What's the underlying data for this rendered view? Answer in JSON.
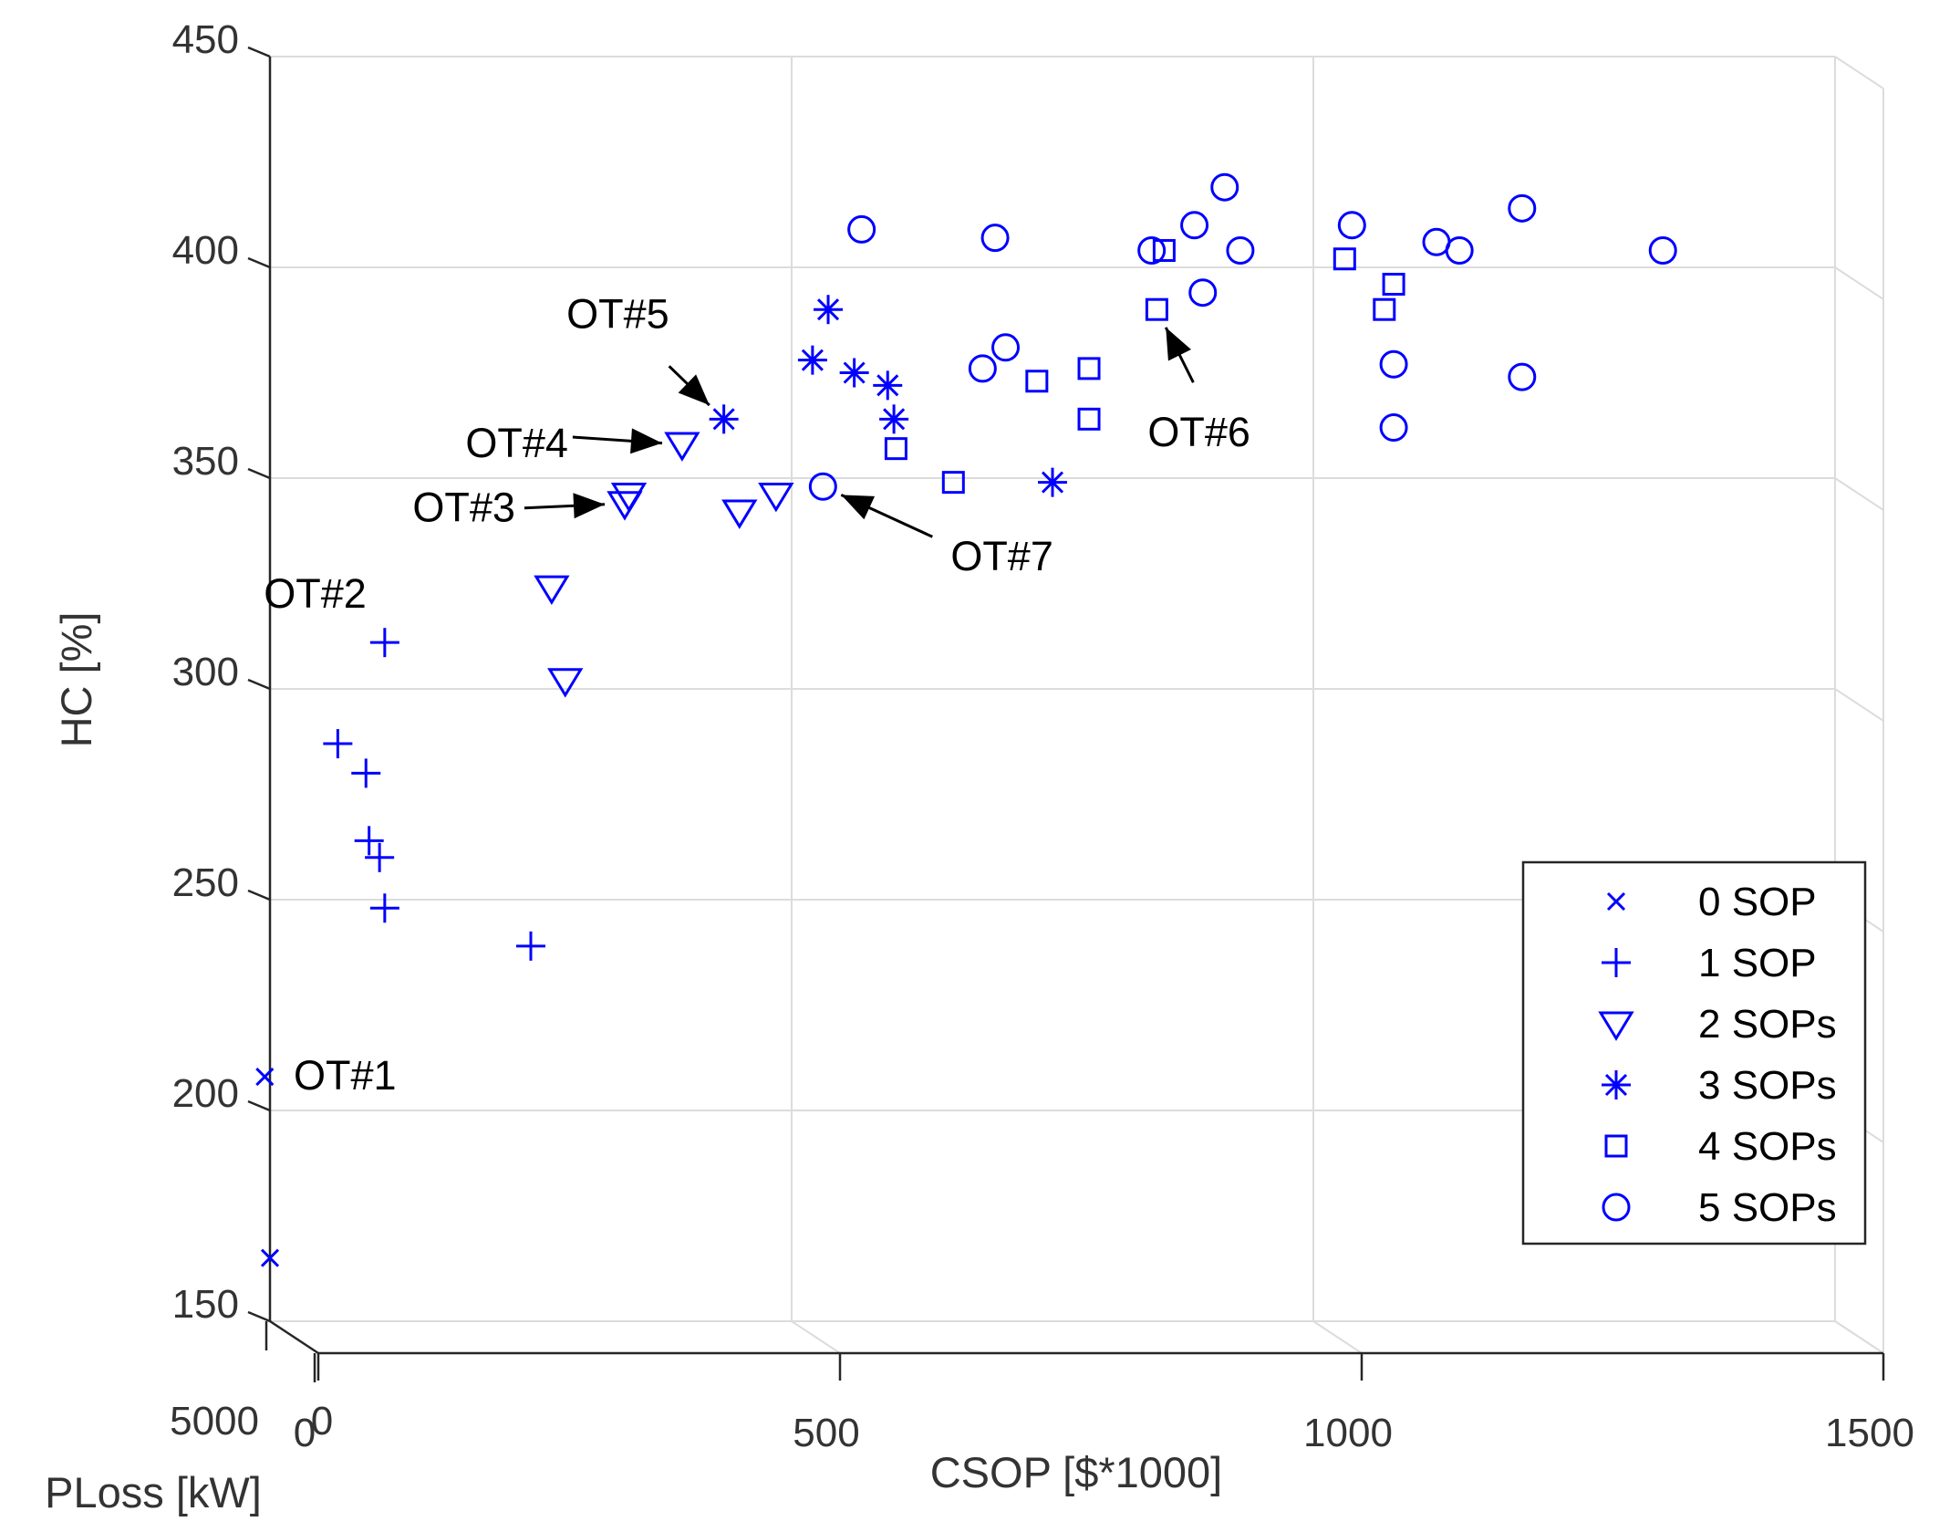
{
  "chart_data": {
    "type": "scatter",
    "view": "3d-projection",
    "xlabel": "CSOP [$*1000]",
    "ylabel": "HC [%]",
    "zlabel": "PLoss [kW]",
    "xlim": [
      0,
      1500
    ],
    "ylim": [
      150,
      450
    ],
    "x_ticks": [
      {
        "value": 0,
        "label": "0"
      },
      {
        "value": 500,
        "label": "500"
      },
      {
        "value": 1000,
        "label": "1000"
      },
      {
        "value": 1500,
        "label": "1500"
      }
    ],
    "y_ticks": [
      {
        "value": 150,
        "label": "150"
      },
      {
        "value": 200,
        "label": "200"
      },
      {
        "value": 250,
        "label": "250"
      },
      {
        "value": 300,
        "label": "300"
      },
      {
        "value": 350,
        "label": "350"
      },
      {
        "value": 400,
        "label": "400"
      },
      {
        "value": 450,
        "label": "450"
      }
    ],
    "z_ticks": [
      {
        "value": 5000,
        "label": "5000"
      },
      {
        "value": 0,
        "label": "0"
      }
    ],
    "grid": true,
    "color": "#0000ff",
    "legend_position": "bottom-right",
    "series": [
      {
        "name": "0 SOP",
        "marker": "x",
        "points": [
          {
            "x": 0,
            "y": 165
          },
          {
            "x": -5,
            "y": 208
          }
        ]
      },
      {
        "name": "1 SOP",
        "marker": "+",
        "points": [
          {
            "x": 110,
            "y": 311
          },
          {
            "x": 65,
            "y": 287
          },
          {
            "x": 92,
            "y": 280
          },
          {
            "x": 95,
            "y": 264
          },
          {
            "x": 105,
            "y": 260
          },
          {
            "x": 110,
            "y": 248
          },
          {
            "x": 250,
            "y": 239
          }
        ]
      },
      {
        "name": "2 SOPs",
        "marker": "triangle-down",
        "points": [
          {
            "x": 395,
            "y": 358
          },
          {
            "x": 344,
            "y": 346
          },
          {
            "x": 340,
            "y": 344
          },
          {
            "x": 450,
            "y": 342
          },
          {
            "x": 485,
            "y": 346
          },
          {
            "x": 270,
            "y": 324
          },
          {
            "x": 283,
            "y": 302
          }
        ]
      },
      {
        "name": "3 SOPs",
        "marker": "*",
        "points": [
          {
            "x": 435,
            "y": 364
          },
          {
            "x": 535,
            "y": 390
          },
          {
            "x": 520,
            "y": 378
          },
          {
            "x": 560,
            "y": 375
          },
          {
            "x": 592,
            "y": 372
          },
          {
            "x": 598,
            "y": 364
          },
          {
            "x": 750,
            "y": 349
          }
        ]
      },
      {
        "name": "4 SOPs",
        "marker": "square",
        "points": [
          {
            "x": 857,
            "y": 404
          },
          {
            "x": 1030,
            "y": 402
          },
          {
            "x": 1077,
            "y": 396
          },
          {
            "x": 1068,
            "y": 390
          },
          {
            "x": 850,
            "y": 390
          },
          {
            "x": 735,
            "y": 373
          },
          {
            "x": 785,
            "y": 376
          },
          {
            "x": 785,
            "y": 364
          },
          {
            "x": 600,
            "y": 357
          },
          {
            "x": 655,
            "y": 349
          }
        ]
      },
      {
        "name": "5 SOPs",
        "marker": "circle",
        "points": [
          {
            "x": 567,
            "y": 409
          },
          {
            "x": 695,
            "y": 407
          },
          {
            "x": 845,
            "y": 404
          },
          {
            "x": 886,
            "y": 410
          },
          {
            "x": 915,
            "y": 419
          },
          {
            "x": 930,
            "y": 404
          },
          {
            "x": 894,
            "y": 394
          },
          {
            "x": 1037,
            "y": 410
          },
          {
            "x": 1118,
            "y": 406
          },
          {
            "x": 1140,
            "y": 404
          },
          {
            "x": 1200,
            "y": 414
          },
          {
            "x": 1335,
            "y": 404
          },
          {
            "x": 1200,
            "y": 374
          },
          {
            "x": 1077,
            "y": 377
          },
          {
            "x": 1077,
            "y": 362
          },
          {
            "x": 705,
            "y": 381
          },
          {
            "x": 683,
            "y": 376
          },
          {
            "x": 530,
            "y": 348
          }
        ]
      }
    ],
    "annotations": [
      {
        "text": "OT#1",
        "x": 0,
        "y": 208,
        "arrow": false
      },
      {
        "text": "OT#2",
        "x": 110,
        "y": 311,
        "arrow": false
      },
      {
        "text": "OT#3",
        "x": 340,
        "y": 344,
        "arrow": true
      },
      {
        "text": "OT#4",
        "x": 395,
        "y": 358,
        "arrow": true
      },
      {
        "text": "OT#5",
        "x": 435,
        "y": 364,
        "arrow": true
      },
      {
        "text": "OT#6",
        "x": 850,
        "y": 390,
        "arrow": true
      },
      {
        "text": "OT#7",
        "x": 530,
        "y": 348,
        "arrow": true
      }
    ]
  }
}
